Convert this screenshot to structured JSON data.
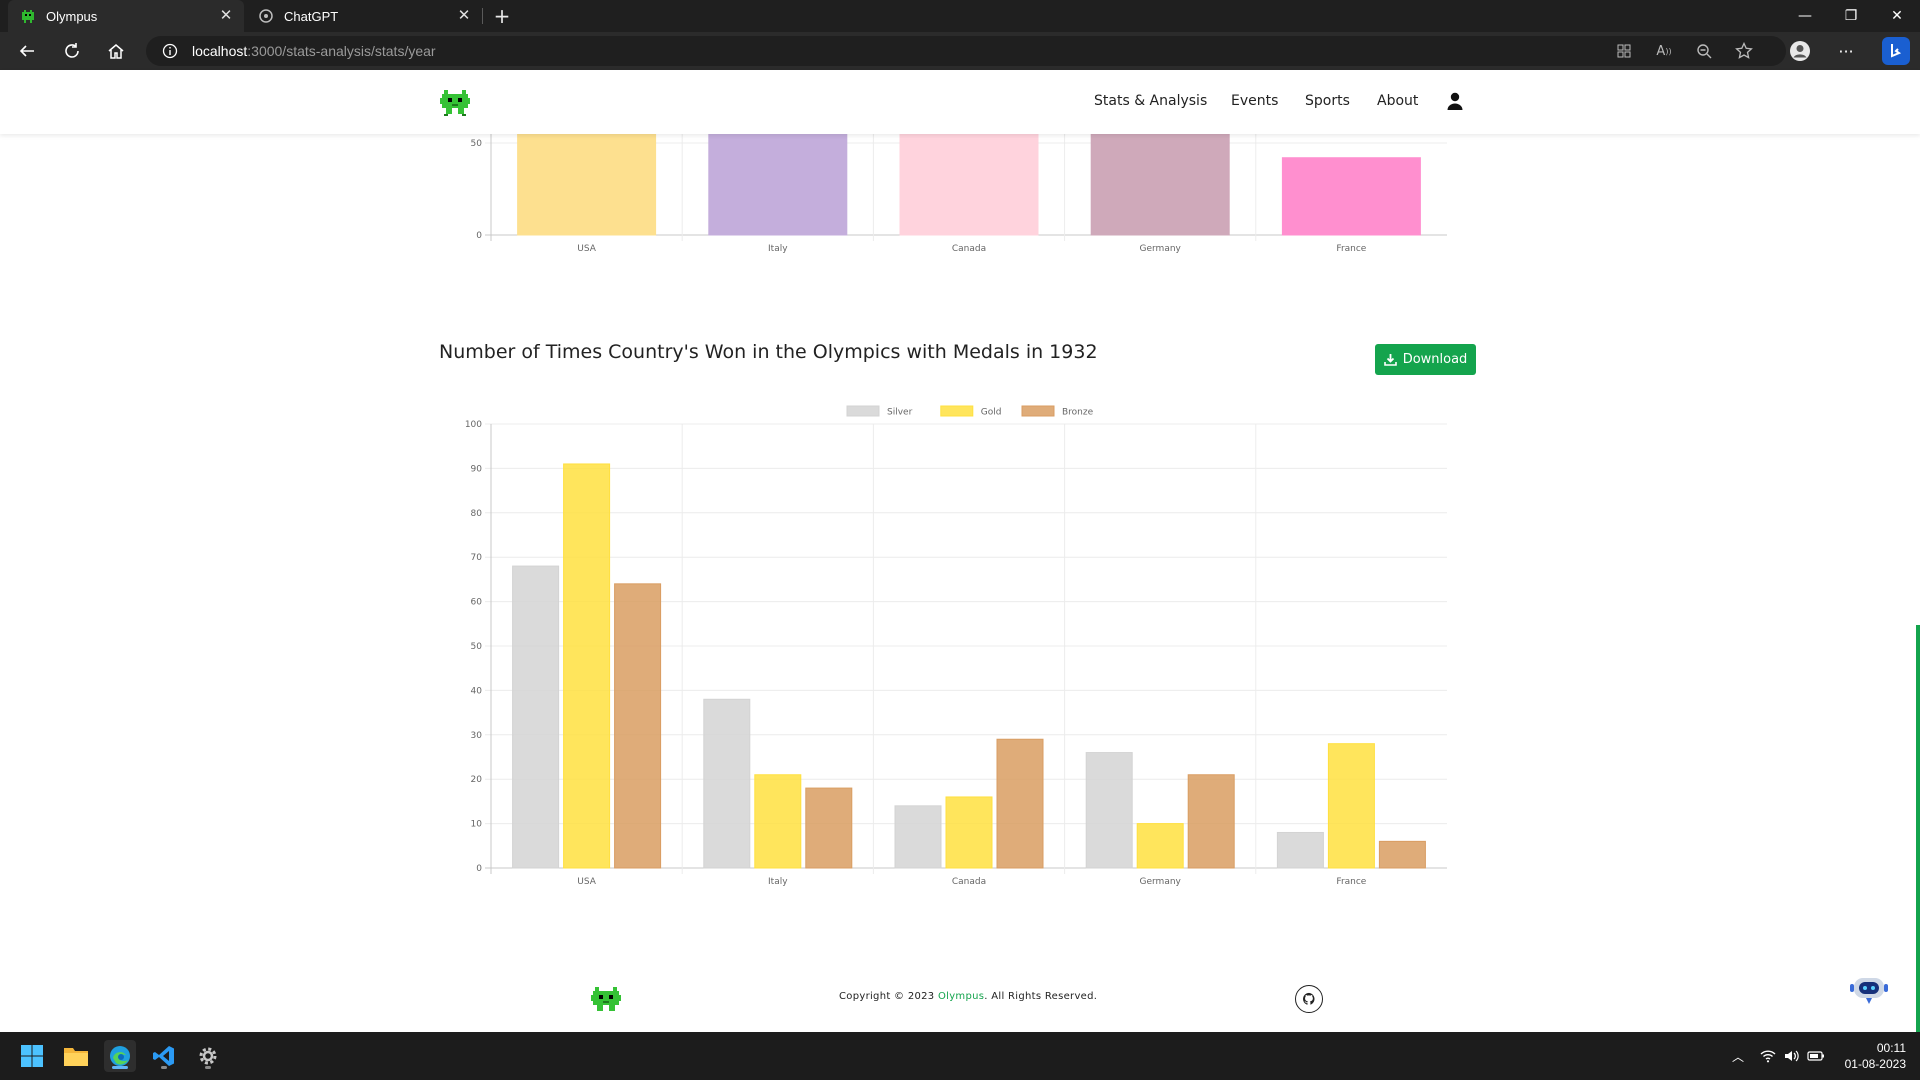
{
  "browser": {
    "tabs": [
      {
        "title": "Olympus",
        "active": true
      },
      {
        "title": "ChatGPT",
        "active": false
      }
    ],
    "url_host": "localhost",
    "url_path": ":3000/stats-analysis/stats/year"
  },
  "header": {
    "nav": [
      "Stats & Analysis",
      "Events",
      "Sports",
      "About"
    ]
  },
  "section": {
    "title": "Number of Times Country's Won in the Olympics with Medals in 1932",
    "download_label": "Download"
  },
  "footer": {
    "copyright_prefix": "Copyright © 2023 ",
    "brand": "Olympus",
    "copyright_suffix": ". All Rights Reserved."
  },
  "taskbar": {
    "time": "00:11",
    "date": "01-08-2023"
  },
  "colors": {
    "accent": "#14a44d",
    "silver": "#d3d3d3",
    "gold": "#ffe03f",
    "bronze": "#d99d62"
  },
  "chart_data": [
    {
      "type": "bar",
      "title": "",
      "categories": [
        "USA",
        "Italy",
        "Canada",
        "Germany",
        "France"
      ],
      "values": [
        null,
        null,
        null,
        null,
        42
      ],
      "note": "partially scrolled out of view; only the bottom of the y-axis (0-50) is visible",
      "bar_colors": [
        "#fde08f",
        "#c4aedc",
        "#ffd3dd",
        "#cfa9ba",
        "#ff8fcf"
      ],
      "visible_yticks": [
        0,
        50
      ],
      "ylim": [
        0,
        100
      ]
    },
    {
      "type": "bar",
      "title": "Number of Times Country's Won in the Olympics with Medals in 1932",
      "categories": [
        "USA",
        "Italy",
        "Canada",
        "Germany",
        "France"
      ],
      "series": [
        {
          "name": "Silver",
          "values": [
            68,
            38,
            14,
            26,
            8
          ]
        },
        {
          "name": "Gold",
          "values": [
            91,
            21,
            16,
            10,
            28
          ]
        },
        {
          "name": "Bronze",
          "values": [
            64,
            18,
            29,
            21,
            6
          ]
        }
      ],
      "ylim": [
        0,
        100
      ],
      "yticks": [
        0,
        10,
        20,
        30,
        40,
        50,
        60,
        70,
        80,
        90,
        100
      ],
      "legend": "top-center",
      "grid": true
    }
  ]
}
